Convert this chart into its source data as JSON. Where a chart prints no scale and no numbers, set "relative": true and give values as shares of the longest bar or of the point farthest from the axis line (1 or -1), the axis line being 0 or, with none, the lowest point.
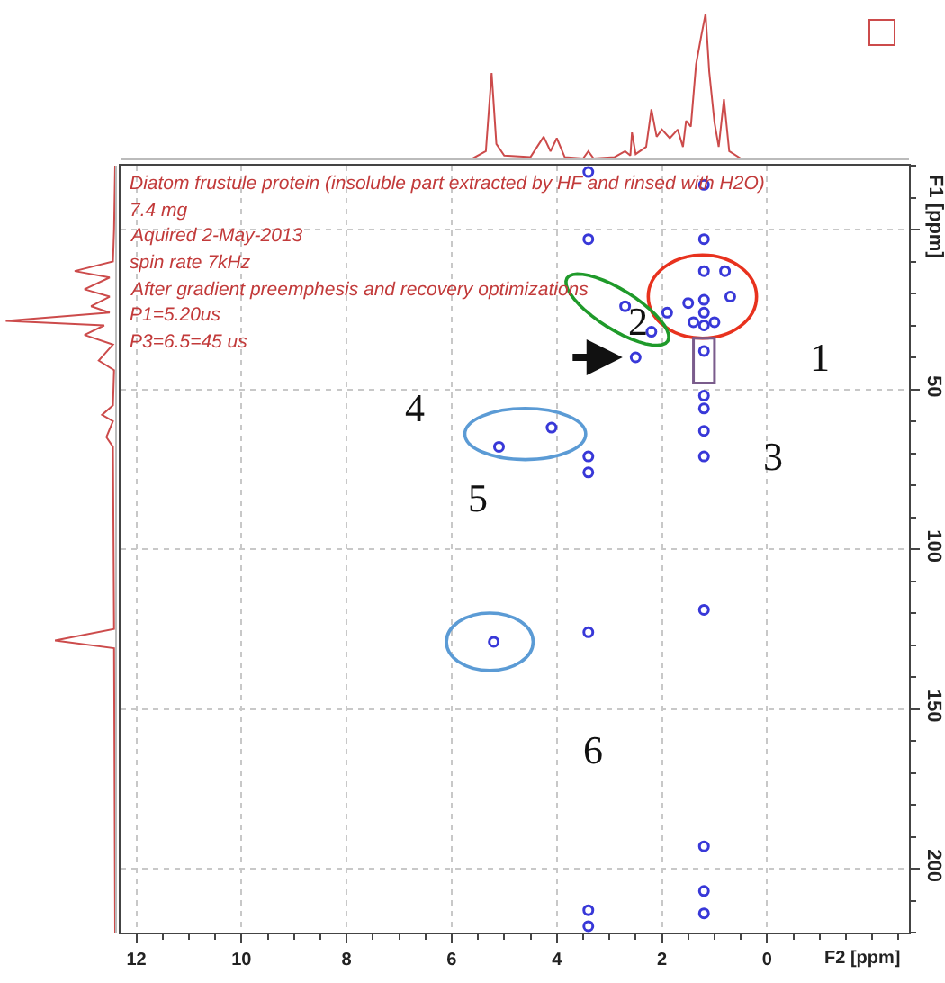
{
  "chart_data": [
    {
      "type": "line",
      "relative": true,
      "tick_labels": false,
      "xlim": [
        12.3,
        -2.7
      ],
      "x": [
        12.3,
        5.6,
        5.35,
        5.24,
        5.15,
        5.0,
        4.5,
        4.25,
        4.12,
        4.0,
        3.85,
        3.5,
        3.4,
        3.3,
        2.9,
        2.7,
        2.6,
        2.57,
        2.5,
        2.3,
        2.2,
        2.1,
        2.0,
        1.85,
        1.7,
        1.6,
        1.54,
        1.45,
        1.35,
        1.25,
        1.17,
        1.1,
        1.0,
        0.92,
        0.82,
        0.72,
        0.5,
        -2.7
      ],
      "series": [
        {
          "color": "#cc4b4b",
          "values": [
            0,
            0,
            0.05,
            0.59,
            0.1,
            0.02,
            0.01,
            0.15,
            0.05,
            0.14,
            0.01,
            0,
            0.05,
            0,
            0.01,
            0.05,
            0.02,
            0.18,
            0.03,
            0.08,
            0.34,
            0.15,
            0.2,
            0.14,
            0.2,
            0.08,
            0.26,
            0.22,
            0.65,
            0.85,
            1.0,
            0.6,
            0.25,
            0.08,
            0.41,
            0.05,
            0,
            0
          ]
        }
      ]
    },
    {
      "type": "line",
      "relative": true,
      "orientation": "horizontal",
      "tick_labels": false,
      "ylim": [
        220,
        -20
      ],
      "x": [
        -20,
        0,
        10,
        13,
        15,
        18.7,
        21,
        24,
        26,
        28.6,
        30,
        33,
        36,
        41,
        44,
        55,
        58,
        60,
        65,
        68,
        125,
        128.6,
        131,
        220
      ],
      "series": [
        {
          "color": "#cc4b4b",
          "values": [
            0,
            -0.01,
            -0.02,
            -0.37,
            -0.05,
            -0.28,
            -0.05,
            -0.22,
            -0.05,
            -1.0,
            -0.1,
            -0.28,
            -0.02,
            -0.15,
            -0.01,
            -0.02,
            -0.12,
            -0.02,
            -0.08,
            -0.02,
            -0.01,
            -0.55,
            -0.01,
            0
          ]
        }
      ]
    },
    {
      "type": "scatter",
      "xlabel": "F2 [ppm]",
      "ylabel": "F1 [ppm]",
      "grid": true,
      "marker": "circle",
      "xlim": [
        12.3,
        -2.7
      ],
      "ylim": [
        220,
        -20
      ],
      "xticks": [
        12,
        10,
        8,
        6,
        4,
        2,
        0
      ],
      "yticks": [
        {
          "value": 0,
          "label": null
        },
        50,
        100,
        150,
        200
      ],
      "x": [
        1.2,
        1.2,
        1.2,
        1.2,
        1.2,
        1.2,
        1.2,
        1.2,
        1.2,
        1.2,
        1.2,
        0.8,
        0.7,
        1.5,
        1.9,
        1.4,
        1.0,
        2.7,
        2.2,
        2.5,
        3.4,
        3.4,
        3.4,
        3.4,
        4.1,
        5.1,
        5.2,
        3.4,
        1.2,
        1.2,
        1.2,
        1.2,
        3.4,
        3.4
      ],
      "series": [
        {
          "color": "#3838d8",
          "values": [
            -14,
            3,
            13,
            22,
            26,
            30,
            38,
            52,
            56,
            63,
            71,
            13,
            21,
            23,
            26,
            29,
            29,
            24,
            32,
            40,
            -18,
            3,
            71,
            76,
            62,
            68,
            129,
            126,
            119,
            193,
            207,
            214,
            213,
            218
          ]
        }
      ],
      "annotations": [
        "Diatom frustule protein (insoluble part extracted by HF and rinsed with H2O)",
        "7.4 mg",
        "Aquired 2-May-2013",
        "spin rate 7kHz",
        "After gradient preemphesis and recovery optimizations",
        "P1=5.20us",
        "P3=6.5=45 us",
        "1",
        "2",
        "3",
        "4",
        "5",
        "6"
      ]
    }
  ]
}
